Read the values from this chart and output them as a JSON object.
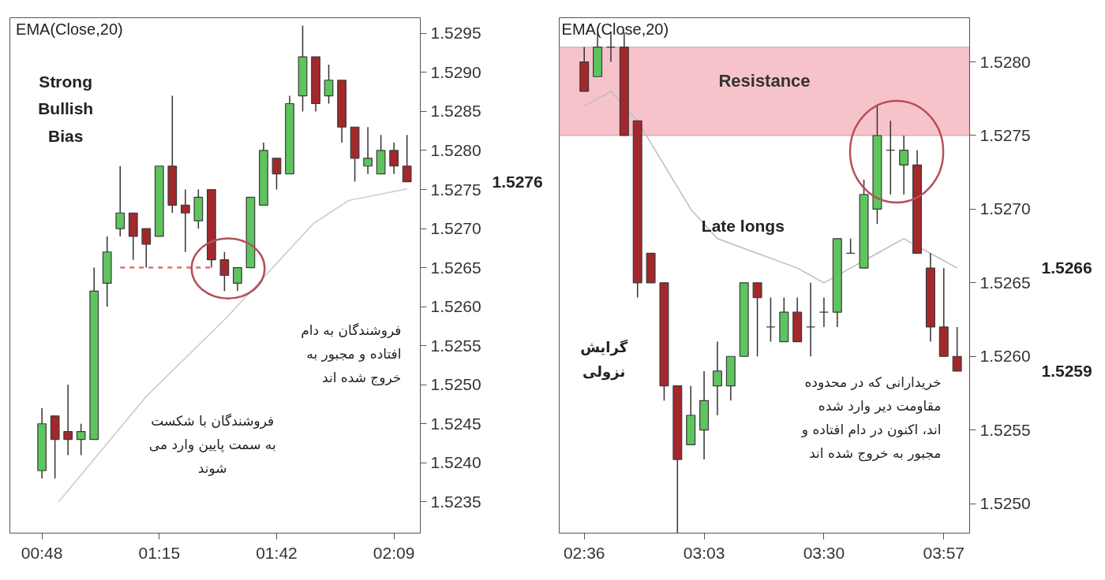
{
  "chart_data": [
    {
      "type": "candlestick",
      "x": [
        0.8,
        0.85,
        0.9,
        0.95,
        1.0,
        1.05,
        1.1,
        1.15,
        1.2,
        1.25,
        1.3,
        1.35,
        1.4,
        1.45,
        1.5,
        1.55,
        1.6,
        1.65,
        1.7,
        1.75,
        1.8,
        1.85,
        1.9,
        1.95,
        2.0,
        2.05,
        2.1,
        2.15,
        2.2
      ],
      "ohlc": [
        [
          1.5239,
          1.5247,
          1.5238,
          1.5245
        ],
        [
          1.5246,
          1.5246,
          1.5238,
          1.5243
        ],
        [
          1.5244,
          1.525,
          1.5241,
          1.5243
        ],
        [
          1.5243,
          1.5245,
          1.5241,
          1.5244
        ],
        [
          1.5243,
          1.5265,
          1.5243,
          1.5262
        ],
        [
          1.5263,
          1.5269,
          1.526,
          1.5267
        ],
        [
          1.527,
          1.5278,
          1.5269,
          1.5272
        ],
        [
          1.5272,
          1.5272,
          1.5266,
          1.5269
        ],
        [
          1.527,
          1.527,
          1.5265,
          1.5268
        ],
        [
          1.5269,
          1.5278,
          1.5269,
          1.5278
        ],
        [
          1.5278,
          1.5287,
          1.5272,
          1.5273
        ],
        [
          1.5273,
          1.5275,
          1.5267,
          1.5272
        ],
        [
          1.5271,
          1.5275,
          1.527,
          1.5274
        ],
        [
          1.5275,
          1.5275,
          1.5265,
          1.5266
        ],
        [
          1.5266,
          1.5267,
          1.5262,
          1.5264
        ],
        [
          1.5263,
          1.5265,
          1.5262,
          1.5265
        ],
        [
          1.5265,
          1.5274,
          1.5265,
          1.5274
        ],
        [
          1.5273,
          1.5281,
          1.5273,
          1.528
        ],
        [
          1.5279,
          1.5279,
          1.5275,
          1.5277
        ],
        [
          1.5277,
          1.5287,
          1.5277,
          1.5286
        ],
        [
          1.5287,
          1.5296,
          1.5285,
          1.5292
        ],
        [
          1.5292,
          1.5292,
          1.5285,
          1.5286
        ],
        [
          1.5287,
          1.5291,
          1.5286,
          1.5289
        ],
        [
          1.5289,
          1.5289,
          1.5281,
          1.5283
        ],
        [
          1.5283,
          1.5283,
          1.5276,
          1.5279
        ],
        [
          1.5278,
          1.5283,
          1.5277,
          1.5279
        ],
        [
          1.5277,
          1.5282,
          1.5277,
          1.528
        ],
        [
          1.528,
          1.5281,
          1.5277,
          1.5278
        ],
        [
          1.5278,
          1.5282,
          1.5276,
          1.5276
        ]
      ],
      "colors": [
        "#5ec45e",
        "#a3282c",
        "#a3282c",
        "#5ec45e",
        "#5ec45e",
        "#5ec45e",
        "#5ec45e",
        "#a3282c",
        "#a3282c",
        "#5ec45e",
        "#a3282c",
        "#a3282c",
        "#5ec45e",
        "#a3282c",
        "#a3282c",
        "#5ec45e",
        "#5ec45e",
        "#5ec45e",
        "#a3282c",
        "#5ec45e",
        "#5ec45e",
        "#a3282c",
        "#5ec45e",
        "#a3282c",
        "#a3282c",
        "#5ec45e",
        "#5ec45e",
        "#a3282c",
        "#a3282c"
      ],
      "series": [
        {
          "type": "line",
          "color": "#c8c8c8",
          "x": [
            0.864,
            1.2,
            1.508,
            1.843,
            1.977,
            2.2
          ],
          "values": [
            1.5235,
            1.52485,
            1.52586,
            1.52707,
            1.52736,
            1.52751
          ]
        },
        {
          "type": "line",
          "color": "#e07070",
          "line_style": "dashed",
          "x": [
            1.1,
            1.45
          ],
          "values": [
            1.5265,
            1.5265
          ]
        }
      ],
      "xlim": [
        0.677,
        2.251
      ],
      "ylim": [
        1.5231,
        1.5297
      ],
      "xticks": [
        {
          "value": 0.8,
          "label": "00:48"
        },
        {
          "value": 1.25,
          "label": "01:15"
        },
        {
          "value": 1.7,
          "label": "01:42"
        },
        {
          "value": 2.15,
          "label": "02:09"
        }
      ],
      "yticks": [
        1.5235,
        {
          "value": 1.524,
          "label": "1.5240"
        },
        1.5245,
        {
          "value": 1.525,
          "label": "1.5250"
        },
        1.5255,
        {
          "value": 1.526,
          "label": "1.5260"
        },
        1.5265,
        {
          "value": 1.527,
          "label": "1.5270"
        },
        1.5275,
        {
          "value": 1.528,
          "label": "1.5280"
        },
        1.5285,
        {
          "value": 1.529,
          "label": "1.5290"
        },
        1.5295
      ],
      "annotations": [
        "EMA(Close,20)",
        "Strong\nBullish\nBias",
        "فروشندگان به دام\nافتاده و مجبور به\nخروج شده اند",
        "فروشندگان با شکست\nبه سمت پایین وارد می\nشوند",
        "1.5276"
      ]
    },
    {
      "type": "candlestick",
      "x": [
        2.6,
        2.65,
        2.7,
        2.75,
        2.8,
        2.85,
        2.9,
        2.95,
        3.0,
        3.05,
        3.1,
        3.15,
        3.2,
        3.25,
        3.3,
        3.35,
        3.4,
        3.45,
        3.5,
        3.55,
        3.6,
        3.65,
        3.7,
        3.75,
        3.8,
        3.85,
        3.9,
        3.95,
        4.0
      ],
      "ohlc": [
        [
          1.528,
          1.5281,
          1.5278,
          1.5278
        ],
        [
          1.5279,
          1.5282,
          1.5279,
          1.5281
        ],
        [
          1.5281,
          1.5282,
          1.528,
          1.5281
        ],
        [
          1.5281,
          1.5282,
          1.5275,
          1.5275
        ],
        [
          1.5276,
          1.5276,
          1.5264,
          1.5265
        ],
        [
          1.5267,
          1.5267,
          1.5265,
          1.5265
        ],
        [
          1.5265,
          1.5265,
          1.5257,
          1.5258
        ],
        [
          1.5258,
          1.5258,
          1.5248,
          1.5253
        ],
        [
          1.5254,
          1.5258,
          1.5254,
          1.5256
        ],
        [
          1.5255,
          1.5259,
          1.5253,
          1.5257
        ],
        [
          1.5258,
          1.5261,
          1.5256,
          1.5259
        ],
        [
          1.5258,
          1.526,
          1.5257,
          1.526
        ],
        [
          1.526,
          1.5265,
          1.526,
          1.5265
        ],
        [
          1.5265,
          1.5265,
          1.526,
          1.5264
        ],
        [
          1.5262,
          1.5264,
          1.5261,
          1.5262
        ],
        [
          1.5261,
          1.5264,
          1.5261,
          1.5263
        ],
        [
          1.5263,
          1.5264,
          1.5261,
          1.5261
        ],
        [
          1.5262,
          1.5265,
          1.526,
          1.5262
        ],
        [
          1.5263,
          1.5264,
          1.5262,
          1.5263
        ],
        [
          1.5263,
          1.5268,
          1.5262,
          1.5268
        ],
        [
          1.5267,
          1.5268,
          1.5267,
          1.5267
        ],
        [
          1.5266,
          1.5272,
          1.5266,
          1.5271
        ],
        [
          1.527,
          1.5277,
          1.5269,
          1.5275
        ],
        [
          1.5274,
          1.5276,
          1.5271,
          1.5274
        ],
        [
          1.5273,
          1.5275,
          1.5271,
          1.5274
        ],
        [
          1.5273,
          1.5274,
          1.5267,
          1.5267
        ],
        [
          1.5266,
          1.5267,
          1.5261,
          1.5262
        ],
        [
          1.5262,
          1.5266,
          1.526,
          1.526
        ],
        [
          1.526,
          1.5262,
          1.5259,
          1.5259
        ]
      ],
      "colors": [
        "#a3282c",
        "#5ec45e",
        "#3a3a3a",
        "#a3282c",
        "#a3282c",
        "#a3282c",
        "#a3282c",
        "#a3282c",
        "#5ec45e",
        "#5ec45e",
        "#5ec45e",
        "#5ec45e",
        "#5ec45e",
        "#a3282c",
        "#3a3a3a",
        "#5ec45e",
        "#a3282c",
        "#3a3a3a",
        "#3a3a3a",
        "#5ec45e",
        "#3a3a3a",
        "#5ec45e",
        "#5ec45e",
        "#3a3a3a",
        "#5ec45e",
        "#a3282c",
        "#a3282c",
        "#a3282c",
        "#a3282c"
      ],
      "series": [
        {
          "type": "line",
          "color": "#bdbdbd",
          "x": [
            2.6,
            2.7,
            2.8,
            2.9,
            3.0,
            3.1,
            3.25,
            3.4,
            3.5,
            3.6,
            3.7,
            3.8,
            3.9,
            4.0
          ],
          "values": [
            1.5277,
            1.5278,
            1.5276,
            1.5273,
            1.527,
            1.5268,
            1.5267,
            1.5266,
            1.5265,
            1.5266,
            1.5267,
            1.5268,
            1.5267,
            1.5266
          ]
        }
      ],
      "bands": [
        {
          "axis": "y",
          "from": 1.5275,
          "to": 1.5281,
          "label": "Resistance",
          "color": "#f7c3ca"
        }
      ],
      "xlim": [
        2.506,
        4.047
      ],
      "ylim": [
        1.5248,
        1.5283
      ],
      "xticks": [
        {
          "value": 2.6,
          "label": "02:36"
        },
        {
          "value": 3.05,
          "label": "03:03"
        },
        {
          "value": 3.5,
          "label": "03:30"
        },
        {
          "value": 3.95,
          "label": "03:57"
        }
      ],
      "yticks": [
        {
          "value": 1.525,
          "label": "1.5250"
        },
        1.5255,
        {
          "value": 1.526,
          "label": "1.5260"
        },
        1.5265,
        {
          "value": 1.527,
          "label": "1.5270"
        },
        1.5275,
        {
          "value": 1.528,
          "label": "1.5280"
        }
      ],
      "annotations": [
        "EMA(Close,20)",
        "Late longs",
        "گرایش\nنزولی",
        "خریدارانی که در محدوده\nمقاومت دیر وارد شده\nاند، اکنون در دام افتاده و\nمجبور به خروج شده اند",
        "1.5266",
        "1.5259"
      ]
    }
  ]
}
